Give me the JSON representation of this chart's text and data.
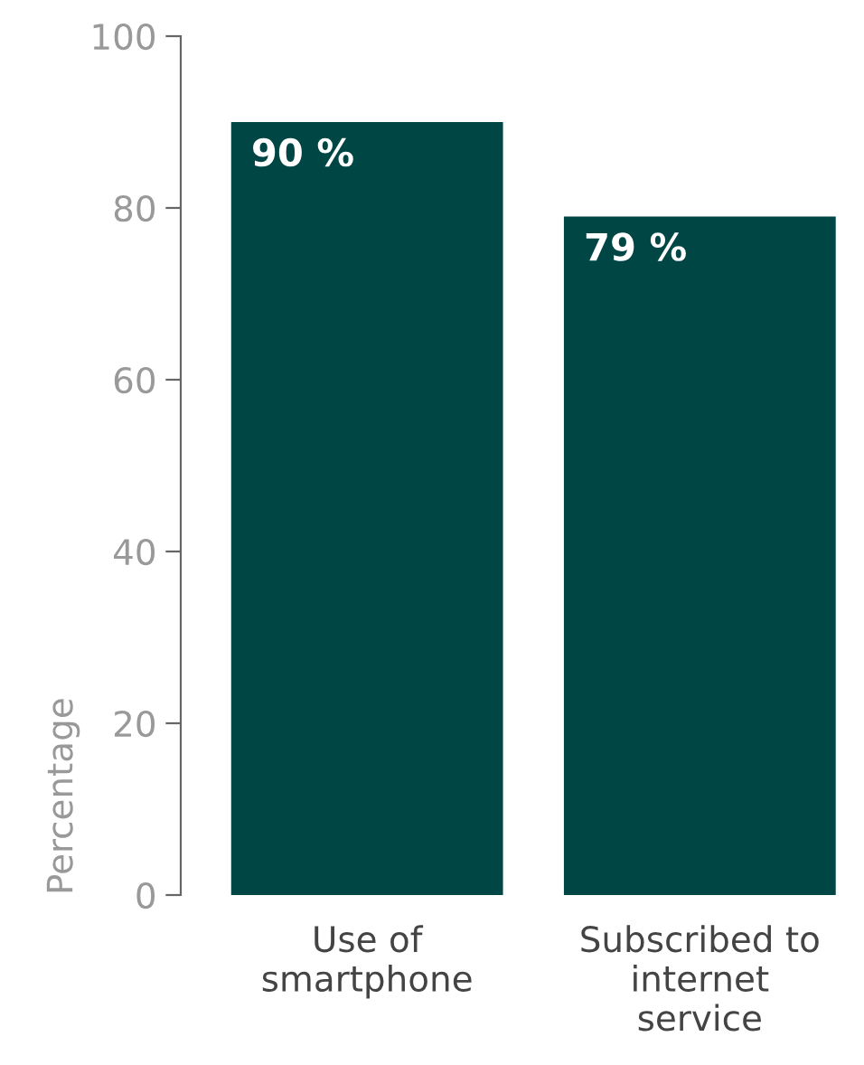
{
  "chart_data": {
    "type": "bar",
    "ylabel": "Percentage",
    "categories": [
      "Use of\nsmartphone",
      "Subscribed to\ninternet\nservice"
    ],
    "values": [
      90,
      79
    ],
    "value_labels": [
      "90 %",
      "79 %"
    ],
    "color": "#004645",
    "ylim": [
      0,
      100
    ],
    "yticks": [
      0,
      20,
      40,
      60,
      80,
      100
    ],
    "grid": false,
    "legend": false
  }
}
